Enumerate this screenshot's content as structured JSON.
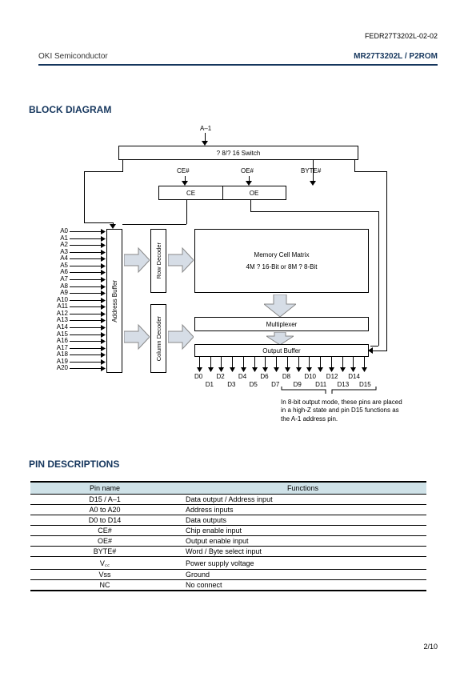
{
  "meta": {
    "docnum": "FEDR27T3202L-02-02",
    "company": "OKI Semiconductor",
    "product": "MR27T3202L / P2ROM",
    "page": "2/10"
  },
  "headings": {
    "block_diagram": "BLOCK DIAGRAM",
    "pin_desc": "PIN DESCRIPTIONS"
  },
  "diagram": {
    "a_minus_1": "A–1",
    "switch_box": "? 8/? 16 Switch",
    "ce_hash": "CE#",
    "oe_hash": "OE#",
    "byte_hash": "BYTE#",
    "ce": "CE",
    "oe": "OE",
    "addr_buffer": "Address Buffer",
    "row_decoder": "Row Decoder",
    "col_decoder": "Column Decoder",
    "mcm1": "Memory Cell Matrix",
    "mcm2": "4M ? 16-Bit  or  8M ? 8-Bit",
    "multiplexer": "Multiplexer",
    "output_buffer": "Output Buffer",
    "addr_labels": [
      "A0",
      "A1",
      "A2",
      "A3",
      "A4",
      "A5",
      "A6",
      "A7",
      "A8",
      "A9",
      "A10",
      "A11",
      "A12",
      "A13",
      "A14",
      "A15",
      "A16",
      "A17",
      "A18",
      "A19",
      "A20"
    ],
    "d_top": [
      "D0",
      "D2",
      "D4",
      "D6",
      "D8",
      "D10",
      "D12",
      "D14"
    ],
    "d_bot": [
      "D1",
      "D3",
      "D5",
      "D7",
      "D9",
      "D11",
      "D13",
      "D15"
    ],
    "footnote": "In 8-bit output mode, these pins are placed in a high-Z state and pin D15 functions as the A-1 address pin."
  },
  "table": {
    "headers": {
      "pin": "Pin name",
      "func": "Functions"
    },
    "rows": [
      {
        "pin": "D15 / A–1",
        "func": "Data output / Address input"
      },
      {
        "pin": "A0 to A20",
        "func": "Address inputs"
      },
      {
        "pin": "D0 to D14",
        "func": "Data outputs"
      },
      {
        "pin": "CE#",
        "func": "Chip enable input"
      },
      {
        "pin": "OE#",
        "func": "Output enable input"
      },
      {
        "pin": "BYTE#",
        "func": "Word / Byte select input"
      },
      {
        "pin": "V꜀꜀",
        "func": "Power supply voltage"
      },
      {
        "pin": "Vss",
        "func": "Ground"
      },
      {
        "pin": "NC",
        "func": "No connect"
      }
    ]
  },
  "colors": {
    "heading": "#15365d",
    "table_header_bg": "#cfe2e8",
    "arrow_fill": "#d6dde6"
  }
}
